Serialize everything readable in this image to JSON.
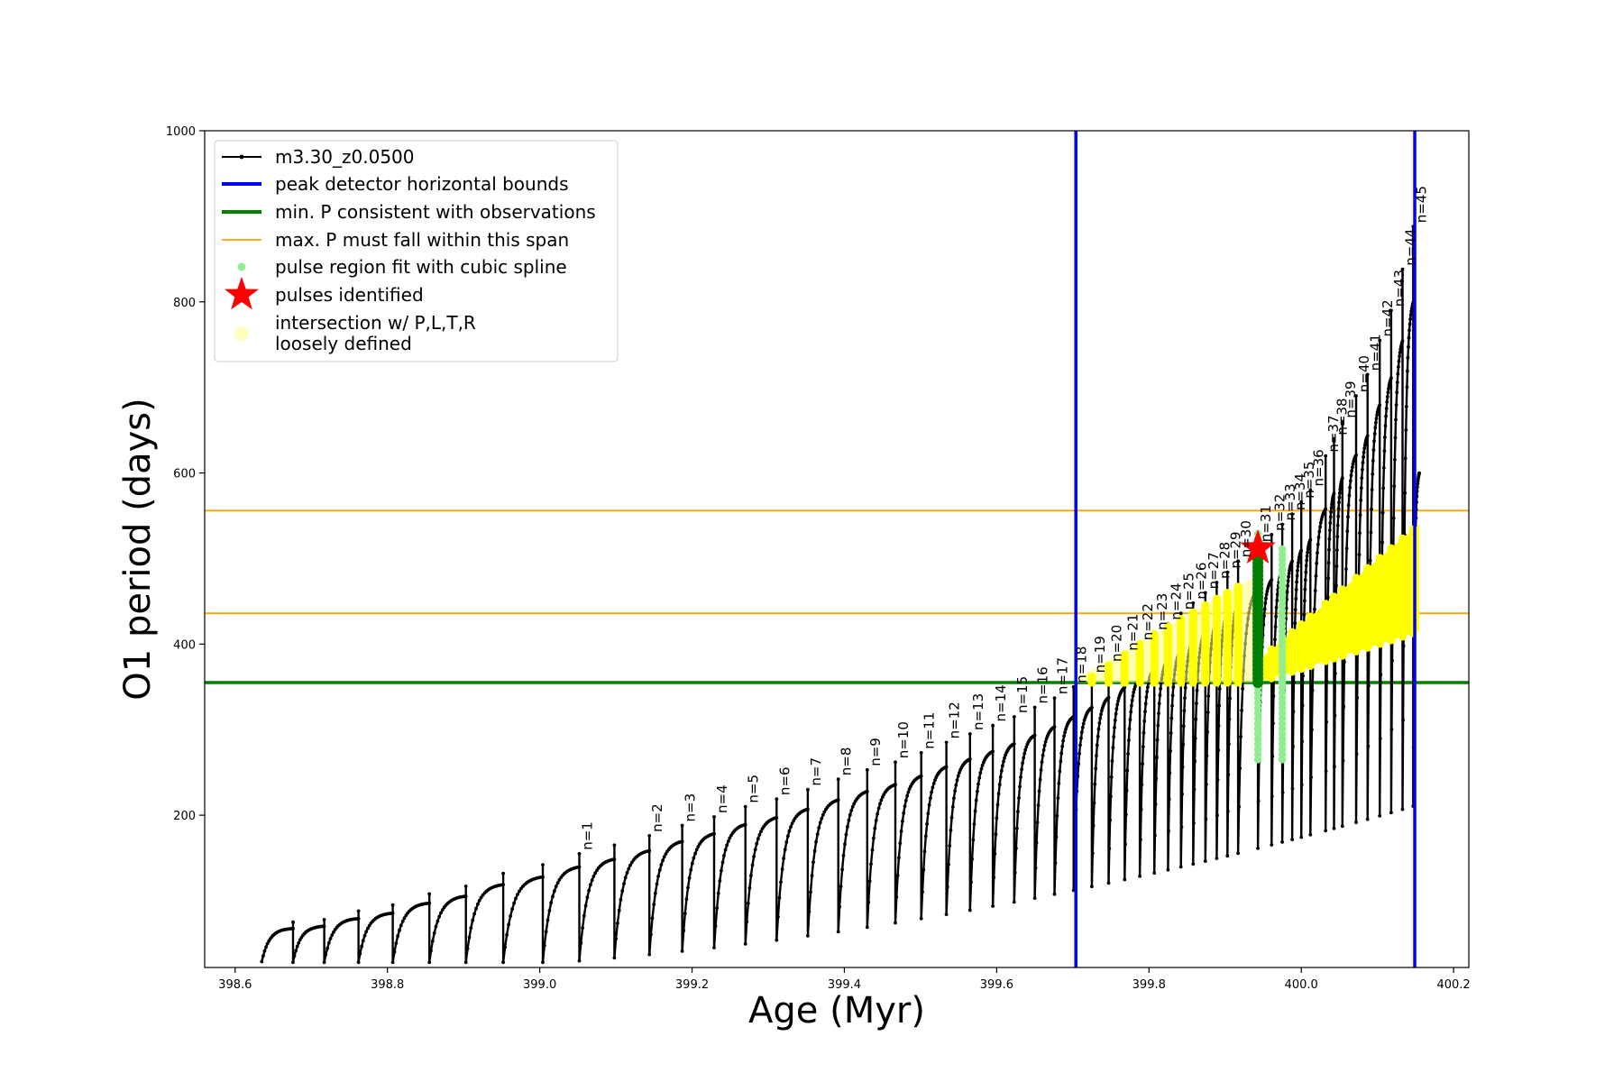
{
  "chart_data": {
    "type": "line",
    "xlabel": "Age (Myr)",
    "ylabel": "O1 period (days)",
    "xlim": [
      398.56,
      400.22
    ],
    "ylim": [
      22,
      1000
    ],
    "xticks": [
      398.6,
      398.8,
      399.0,
      399.2,
      399.4,
      399.6,
      399.8,
      400.0,
      400.2
    ],
    "xtick_labels": [
      "398.6",
      "398.8",
      "399.0",
      "399.2",
      "399.4",
      "399.6",
      "399.8",
      "400.0",
      "400.2"
    ],
    "yticks": [
      200,
      400,
      600,
      800,
      1000
    ],
    "ytick_labels": [
      "200",
      "400",
      "600",
      "800",
      "1000"
    ],
    "grid": false,
    "legend_position": "top-left",
    "series": [
      {
        "name": "m3.30_z0.0500",
        "kind": "pulse-track",
        "color": "#000000",
        "start_x": 398.635,
        "end_x": 400.155,
        "start_period": 32,
        "end_period": 600,
        "pulses": [
          {
            "n": null,
            "age": 398.676,
            "peak": 75
          },
          {
            "n": null,
            "age": 398.717,
            "peak": 78
          },
          {
            "n": null,
            "age": 398.762,
            "peak": 88
          },
          {
            "n": null,
            "age": 398.807,
            "peak": 95
          },
          {
            "n": null,
            "age": 398.855,
            "peak": 108
          },
          {
            "n": null,
            "age": 398.903,
            "peak": 117
          },
          {
            "n": null,
            "age": 398.952,
            "peak": 132
          },
          {
            "n": null,
            "age": 399.004,
            "peak": 142
          },
          {
            "n": 1,
            "age": 399.052,
            "peak": 155
          },
          {
            "n": null,
            "age": 399.098,
            "peak": 165
          },
          {
            "n": 2,
            "age": 399.144,
            "peak": 176
          },
          {
            "n": 3,
            "age": 399.187,
            "peak": 188
          },
          {
            "n": 4,
            "age": 399.229,
            "peak": 198
          },
          {
            "n": 5,
            "age": 399.27,
            "peak": 210
          },
          {
            "n": 6,
            "age": 399.311,
            "peak": 219
          },
          {
            "n": 7,
            "age": 399.352,
            "peak": 230
          },
          {
            "n": 8,
            "age": 399.392,
            "peak": 242
          },
          {
            "n": 9,
            "age": 399.43,
            "peak": 253
          },
          {
            "n": 10,
            "age": 399.467,
            "peak": 262
          },
          {
            "n": 11,
            "age": 399.501,
            "peak": 273
          },
          {
            "n": 12,
            "age": 399.534,
            "peak": 285
          },
          {
            "n": 13,
            "age": 399.565,
            "peak": 295
          },
          {
            "n": 14,
            "age": 399.595,
            "peak": 305
          },
          {
            "n": 15,
            "age": 399.623,
            "peak": 315
          },
          {
            "n": 16,
            "age": 399.65,
            "peak": 326
          },
          {
            "n": 17,
            "age": 399.676,
            "peak": 337
          },
          {
            "n": 18,
            "age": 399.701,
            "peak": 350
          },
          {
            "n": 19,
            "age": 399.725,
            "peak": 362
          },
          {
            "n": 20,
            "age": 399.747,
            "peak": 375
          },
          {
            "n": 21,
            "age": 399.768,
            "peak": 388
          },
          {
            "n": 22,
            "age": 399.788,
            "peak": 400
          },
          {
            "n": 23,
            "age": 399.807,
            "peak": 412
          },
          {
            "n": 24,
            "age": 399.825,
            "peak": 424
          },
          {
            "n": 25,
            "age": 399.842,
            "peak": 436
          },
          {
            "n": 26,
            "age": 399.858,
            "peak": 448
          },
          {
            "n": 27,
            "age": 399.874,
            "peak": 460
          },
          {
            "n": 28,
            "age": 399.889,
            "peak": 472
          },
          {
            "n": 29,
            "age": 399.903,
            "peak": 484
          },
          {
            "n": 30,
            "age": 399.917,
            "peak": 497
          },
          {
            "n": 31,
            "age": 399.943,
            "peak": 515
          },
          {
            "n": 32,
            "age": 399.961,
            "peak": 528
          },
          {
            "n": 33,
            "age": 399.975,
            "peak": 540
          },
          {
            "n": 34,
            "age": 399.988,
            "peak": 552
          },
          {
            "n": 35,
            "age": 400.0,
            "peak": 566
          },
          {
            "n": 36,
            "age": 400.012,
            "peak": 580
          },
          {
            "n": 37,
            "age": 400.032,
            "peak": 620
          },
          {
            "n": 38,
            "age": 400.043,
            "peak": 640
          },
          {
            "n": 39,
            "age": 400.054,
            "peak": 660
          },
          {
            "n": 40,
            "age": 400.072,
            "peak": 690
          },
          {
            "n": 41,
            "age": 400.087,
            "peak": 715
          },
          {
            "n": 42,
            "age": 400.103,
            "peak": 755
          },
          {
            "n": 43,
            "age": 400.118,
            "peak": 790
          },
          {
            "n": 44,
            "age": 400.133,
            "peak": 838
          },
          {
            "n": 45,
            "age": 400.147,
            "peak": 888
          }
        ]
      },
      {
        "name": "peak detector horizontal bounds",
        "kind": "vline",
        "color": "#0000ff",
        "x": [
          399.704,
          400.149
        ]
      },
      {
        "name": "min. P consistent with observations",
        "kind": "hline",
        "color": "#008000",
        "y": 355
      },
      {
        "name": "max. P must fall within this span",
        "kind": "hline",
        "color": "#ffa500",
        "y": [
          436,
          556
        ]
      },
      {
        "name": "pulse region fit with cubic spline",
        "kind": "scatter",
        "color": "#90ee90",
        "x_range": [
          399.943,
          399.975
        ],
        "y_range": [
          265,
          530
        ]
      },
      {
        "name": "pulses identified",
        "kind": "star",
        "color": "#ff0000",
        "x": 399.943,
        "y": 512
      },
      {
        "name": "intersection w/ P,L,T,R\nloosely defined",
        "kind": "region",
        "color": "#ffff00",
        "band": {
          "x": [
            399.704,
            399.943
          ],
          "y_low": 355,
          "y_high_start": 360,
          "y_high_end": 480
        },
        "wedge": {
          "x": [
            399.943,
            400.155
          ],
          "y_low_start": 355,
          "y_low_end": 415,
          "y_high_start": 380,
          "y_high_end": 540
        }
      }
    ]
  },
  "legend": {
    "items": [
      {
        "label": "m3.30_z0.0500",
        "marker": "line-dot",
        "color": "#000000"
      },
      {
        "label": "peak detector horizontal bounds",
        "marker": "line-thick",
        "color": "#0000ff"
      },
      {
        "label": "min. P consistent with observations",
        "marker": "line-thick",
        "color": "#008000"
      },
      {
        "label": "max. P must fall within this span",
        "marker": "line-thin",
        "color": "#ffa500"
      },
      {
        "label": "pulse region fit with cubic spline",
        "marker": "dot",
        "color": "#90ee90"
      },
      {
        "label": "pulses identified",
        "marker": "star",
        "color": "#ff0000"
      },
      {
        "label": "intersection w/ P,L,T,R",
        "label2": "loosely defined",
        "marker": "circle",
        "color": "#ffffc0"
      }
    ]
  }
}
